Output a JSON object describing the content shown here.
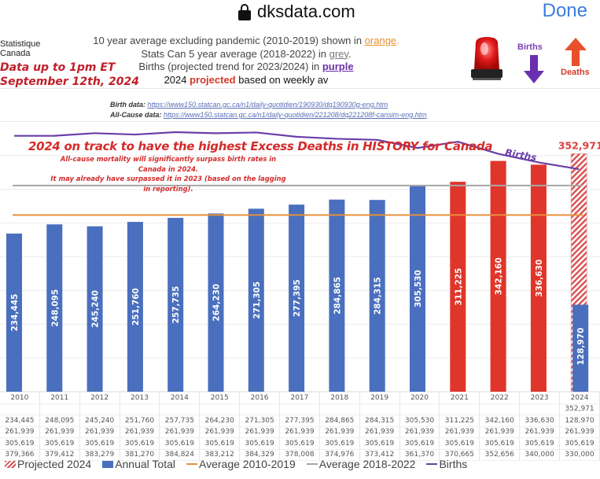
{
  "browser": {
    "url": "dksdata.com",
    "lock_icon": "lock-icon",
    "done_label": "Done"
  },
  "header": {
    "source_org_line1": "Statistique",
    "source_org_line2": "Canada",
    "data_up_line1": "Data up to 1pm ET",
    "data_up_line2": "September 12th, 2024",
    "notes": {
      "line1_prefix": "10 year average excluding pandemic (2010-2019) shown in ",
      "line1_color_word": "orange",
      "line1_suffix": ".",
      "line2_prefix": "Stats Can 5 year average (2018-2022) in ",
      "line2_color_word": "grey",
      "line2_suffix": ".",
      "line3_prefix": "Births (projected trend for 2023/2024) in ",
      "line3_color_word": "purple",
      "line4_prefix": "2024 ",
      "line4_highlight": "projected",
      "line4_suffix": " based on weekly av"
    },
    "icons": {
      "siren": "siren-icon",
      "births_label": "Births",
      "births_arrow": "arrow-down-icon",
      "deaths_label": "Deaths",
      "deaths_arrow": "arrow-up-icon"
    },
    "sources": {
      "birth_label": "Birth data:",
      "birth_url": "https://www150.statcan.gc.ca/n1/daily-quotidien/190930/dq190930g-eng.htm",
      "allcause_label": "All-Cause data:",
      "allcause_url": "https://www150.statcan.gc.ca/n1/daily-quotidien/221208/dq221208f-cansim-eng.htm"
    }
  },
  "colors": {
    "annual": "#4a6fbe",
    "pandemic_years": "#e0352a",
    "projected_hatch": "#d85050",
    "avg_2010_2019": "#e8903a",
    "avg_2018_2022": "#a8a8a8",
    "births": "#6a3fa8",
    "headline": "#d42b2b"
  },
  "chart_data": {
    "type": "bar",
    "title": "2024 on track to have the highest Excess Deaths in HISTORY for Canada",
    "subtitle_lines": [
      "All-cause mortality will significantly surpass birth rates in Canada in 2024.",
      "It may already have surpassed it in 2023 (based on the lagging in reporting)."
    ],
    "xlabel": "",
    "ylabel": "",
    "ylim": [
      0,
      400000
    ],
    "gridline_step": 50000,
    "grid": true,
    "categories": [
      "2010",
      "2011",
      "2012",
      "2013",
      "2014",
      "2015",
      "2016",
      "2017",
      "2018",
      "2019",
      "2020",
      "2021",
      "2022",
      "2023",
      "2024"
    ],
    "series": [
      {
        "name": "Projected 2024",
        "kind": "bar-hatched",
        "values": [
          null,
          null,
          null,
          null,
          null,
          null,
          null,
          null,
          null,
          null,
          null,
          null,
          null,
          null,
          352971
        ],
        "labels": [
          "",
          "",
          "",
          "",
          "",
          "",
          "",
          "",
          "",
          "",
          "",
          "",
          "",
          "",
          "352,971"
        ]
      },
      {
        "name": "Annual Total",
        "kind": "bar",
        "values": [
          234445,
          248095,
          245240,
          251760,
          257735,
          264230,
          271305,
          277395,
          284865,
          284315,
          305530,
          311225,
          342160,
          336630,
          128970
        ],
        "labels": [
          "234,445",
          "248,095",
          "245,240",
          "251,760",
          "257,735",
          "264,230",
          "271,305",
          "277,395",
          "284,865",
          "284,315",
          "305,530",
          "311,225",
          "342,160",
          "336,630",
          "128,970"
        ],
        "highlighted_red": [
          "2021",
          "2022",
          "2023"
        ]
      },
      {
        "name": "Average 2010-2019",
        "kind": "line",
        "values": [
          261939,
          261939,
          261939,
          261939,
          261939,
          261939,
          261939,
          261939,
          261939,
          261939,
          261939,
          261939,
          261939,
          261939,
          261939
        ],
        "labels": [
          "261,939",
          "261,939",
          "261,939",
          "261,939",
          "261,939",
          "261,939",
          "261,939",
          "261,939",
          "261,939",
          "261,939",
          "261,939",
          "261,939",
          "261,939",
          "261,939",
          "261,939"
        ]
      },
      {
        "name": "Average 2018-2022",
        "kind": "line",
        "values": [
          305619,
          305619,
          305619,
          305619,
          305619,
          305619,
          305619,
          305619,
          305619,
          305619,
          305619,
          305619,
          305619,
          305619,
          305619
        ],
        "labels": [
          "305,619",
          "305,619",
          "305,619",
          "305,619",
          "305,619",
          "305,619",
          "305,619",
          "305,619",
          "305,619",
          "305,619",
          "305,619",
          "305,619",
          "305,619",
          "305,619",
          "305,619"
        ]
      },
      {
        "name": "Births",
        "kind": "line",
        "values": [
          379366,
          379412,
          383279,
          381270,
          384824,
          383212,
          384329,
          378008,
          374976,
          373412,
          361370,
          370665,
          352656,
          340000,
          330000
        ],
        "labels": [
          "379,366",
          "379,412",
          "383,279",
          "381,270",
          "384,824",
          "383,212",
          "384,329",
          "378,008",
          "374,976",
          "373,412",
          "361,370",
          "370,665",
          "352,656",
          "340,000",
          "330,000"
        ],
        "annotation": "Births"
      }
    ],
    "legend": {
      "placement": "bottom",
      "items": [
        "Projected 2024",
        "Annual Total",
        "Average 2010-2019",
        "Average 2018-2022",
        "Births"
      ]
    }
  }
}
